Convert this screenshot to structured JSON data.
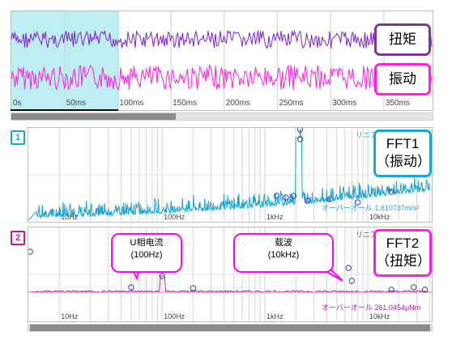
{
  "waveform": {
    "time_ticks": [
      "0s",
      "50ms",
      "100ms",
      "150ms",
      "200ms",
      "250ms",
      "300ms",
      "350ms"
    ],
    "torque_label": "扭矩",
    "vibration_label": "振动",
    "torque_color": "#7b1fe0",
    "vibration_color": "#ff1fe0",
    "selection_color": "#bfeef2",
    "selection_range_ms": [
      0,
      100
    ]
  },
  "fft1": {
    "index": "1",
    "color": "#1aa7d6",
    "mode_label": "リニア",
    "overall_text": "オーバーオール  1.610737m/s²",
    "freq_ticks": [
      "10Hz",
      "100Hz",
      "1kHz",
      "10kHz"
    ],
    "callout": {
      "line1": "FFT1",
      "line2": "（振动）"
    }
  },
  "fft2": {
    "index": "2",
    "color": "#c0199e",
    "mode_label": "リニア",
    "overall_text": "オーバーオール  261.0454μNm",
    "freq_ticks": [
      "10Hz",
      "100Hz",
      "1kHz",
      "10kHz"
    ],
    "callout": {
      "line1": "FFT2",
      "line2": "（扭矩）"
    }
  },
  "annotations": {
    "u_phase": {
      "line1": "U相电流",
      "line2": "(100Hz)"
    },
    "carrier": {
      "line1": "载波",
      "line2": "(10kHz)"
    }
  },
  "icons": [
    "peak-marker-icon",
    "scrollbar-thumb-icon"
  ]
}
